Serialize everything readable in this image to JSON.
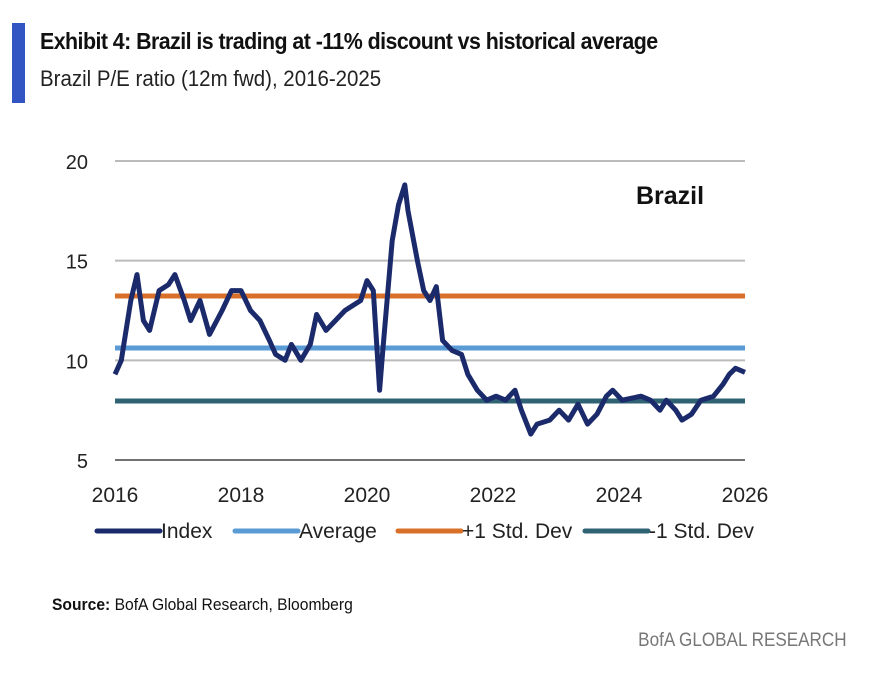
{
  "header": {
    "title": "Exhibit 4: Brazil is trading at -11% discount vs historical average",
    "subtitle": "Brazil P/E ratio (12m fwd), 2016-2025"
  },
  "source": {
    "label": "Source:",
    "text": " BofA Global Research, Bloomberg"
  },
  "footer": "BofA GLOBAL RESEARCH",
  "chart_data": {
    "type": "line",
    "title": "Brazil",
    "xlim": [
      2016,
      2026
    ],
    "ylim": [
      5,
      20
    ],
    "xticks": [
      "2016",
      "2018",
      "2020",
      "2022",
      "2024",
      "2026"
    ],
    "yticks": [
      "5",
      "10",
      "15",
      "20"
    ],
    "grid": "horizontal",
    "legend_position": "bottom",
    "series": [
      {
        "name": "Index",
        "color": "#1b2a6b",
        "x": [
          2016.0,
          2016.1,
          2016.25,
          2016.35,
          2016.45,
          2016.55,
          2016.7,
          2016.85,
          2016.95,
          2017.1,
          2017.2,
          2017.35,
          2017.5,
          2017.7,
          2017.85,
          2018.0,
          2018.15,
          2018.3,
          2018.45,
          2018.55,
          2018.7,
          2018.8,
          2018.95,
          2019.1,
          2019.2,
          2019.35,
          2019.5,
          2019.65,
          2019.8,
          2019.9,
          2020.0,
          2020.1,
          2020.2,
          2020.25,
          2020.4,
          2020.5,
          2020.6,
          2020.65,
          2020.8,
          2020.9,
          2021.0,
          2021.1,
          2021.2,
          2021.35,
          2021.5,
          2021.6,
          2021.75,
          2021.9,
          2022.05,
          2022.2,
          2022.35,
          2022.45,
          2022.6,
          2022.7,
          2022.9,
          2023.05,
          2023.2,
          2023.35,
          2023.5,
          2023.65,
          2023.8,
          2023.9,
          2024.05,
          2024.2,
          2024.35,
          2024.5,
          2024.65,
          2024.75,
          2024.9,
          2025.0,
          2025.15,
          2025.3,
          2025.5,
          2025.65,
          2025.75,
          2025.85,
          2026.0
        ],
        "y": [
          9.3,
          10.0,
          13.0,
          14.3,
          12.0,
          11.5,
          13.5,
          13.8,
          14.3,
          13.0,
          12.0,
          13.0,
          11.3,
          12.5,
          13.5,
          13.5,
          12.5,
          12.0,
          11.0,
          10.3,
          10.0,
          10.8,
          10.0,
          10.8,
          12.3,
          11.5,
          12.0,
          12.5,
          12.8,
          13.0,
          14.0,
          13.5,
          8.5,
          10.5,
          16.0,
          17.8,
          18.8,
          17.5,
          15.0,
          13.5,
          13.0,
          13.7,
          11.0,
          10.5,
          10.3,
          9.3,
          8.5,
          8.0,
          8.2,
          8.0,
          8.5,
          7.5,
          6.3,
          6.8,
          7.0,
          7.5,
          7.0,
          7.8,
          6.8,
          7.3,
          8.2,
          8.5,
          8.0,
          8.1,
          8.2,
          8.0,
          7.5,
          8.0,
          7.5,
          7.0,
          7.3,
          8.0,
          8.2,
          8.8,
          9.3,
          9.6,
          9.4
        ]
      },
      {
        "name": "Average",
        "color": "#5b9bd5",
        "value": 10.62
      },
      {
        "name": "+1 Std. Dev",
        "color": "#d9702a",
        "value": 13.23
      },
      {
        "name": "-1 Std. Dev",
        "color": "#2f6273",
        "value": 7.96
      }
    ]
  }
}
